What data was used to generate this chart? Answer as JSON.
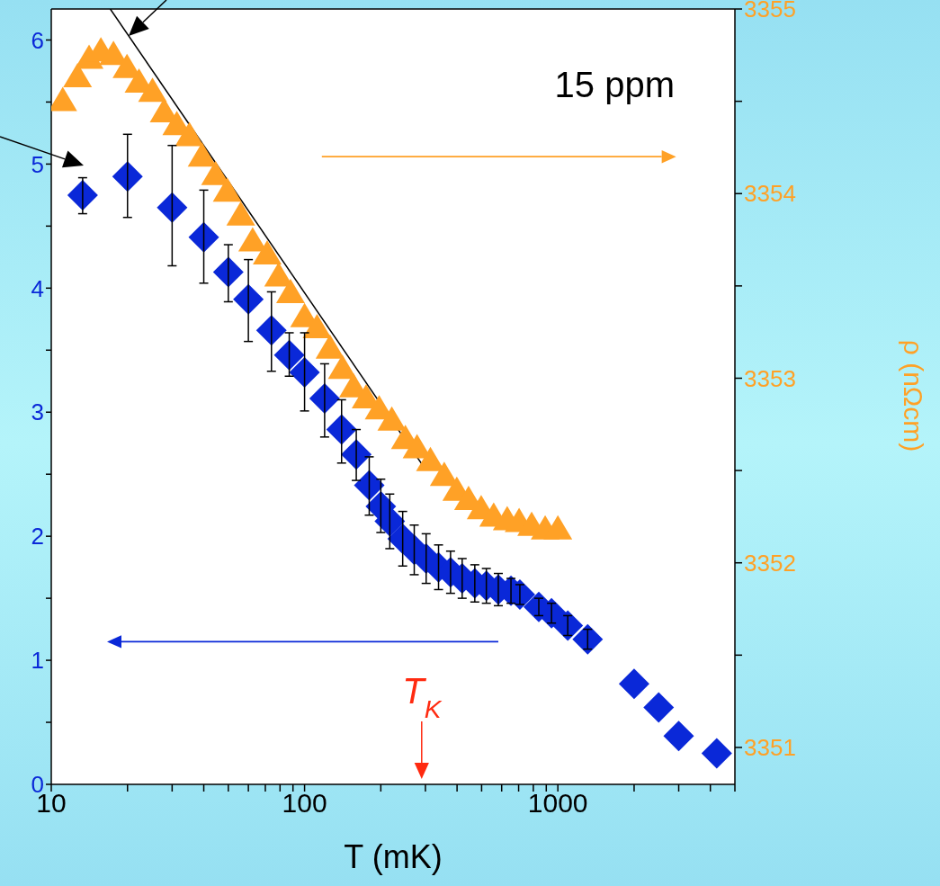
{
  "chart_data": {
    "type": "scatter",
    "xlabel": "T (mK)",
    "y2label": "ρ (nΩcm)",
    "annotations": [
      "15 ppm",
      "T$_{K}$"
    ],
    "log": "x",
    "xlim": [
      10,
      5000
    ],
    "xticks": [
      10,
      {
        "value": 20,
        "label": null
      },
      {
        "value": 30,
        "label": null
      },
      {
        "value": 40,
        "label": null
      },
      {
        "value": 50,
        "label": null
      },
      {
        "value": 60,
        "label": null
      },
      {
        "value": 70,
        "label": null
      },
      {
        "value": 80,
        "label": null
      },
      {
        "value": 90,
        "label": null
      },
      100,
      {
        "value": 200,
        "label": null
      },
      {
        "value": 300,
        "label": null
      },
      {
        "value": 400,
        "label": null
      },
      {
        "value": 500,
        "label": null
      },
      {
        "value": 600,
        "label": null
      },
      {
        "value": 700,
        "label": null
      },
      {
        "value": 800,
        "label": null
      },
      {
        "value": 900,
        "label": null
      },
      1000,
      {
        "value": 2000,
        "label": null
      },
      {
        "value": 3000,
        "label": null
      },
      {
        "value": 4000,
        "label": null
      },
      {
        "value": 5000,
        "label": null
      }
    ],
    "ylim": [
      0,
      6.25
    ],
    "yticks": [
      0,
      {
        "value": 0.5,
        "label": null
      },
      1,
      {
        "value": 1.5,
        "label": null
      },
      2,
      {
        "value": 2.5,
        "label": null
      },
      3,
      {
        "value": 3.5,
        "label": null
      },
      4,
      {
        "value": 4.5,
        "label": null
      },
      5,
      {
        "value": 5.5,
        "label": null
      },
      6
    ],
    "y2lim": [
      3350.8,
      3355
    ],
    "y2ticks": [
      3351,
      {
        "value": 3351.5,
        "label": null
      },
      3352,
      {
        "value": 3352.5,
        "label": null
      },
      3353,
      {
        "value": 3353.5,
        "label": null
      },
      3354,
      {
        "value": 3354.5,
        "label": null
      },
      3355
    ],
    "series": [
      {
        "type": "scatter",
        "color": "#0a28d8",
        "marker": "diamond",
        "x": [
          13.3,
          20,
          30,
          40,
          50,
          60,
          74,
          87,
          100,
          120,
          140,
          160,
          180,
          200,
          217,
          244,
          271,
          302,
          338,
          377,
          419,
          470,
          522,
          582,
          653,
          708,
          841,
          944,
          1094,
          1311,
          2000,
          2500,
          3000,
          4240
        ],
        "values": [
          4.75,
          4.9,
          4.65,
          4.41,
          4.13,
          3.91,
          3.66,
          3.46,
          3.32,
          3.11,
          2.86,
          2.66,
          2.41,
          2.24,
          2.12,
          1.98,
          1.89,
          1.82,
          1.75,
          1.71,
          1.66,
          1.62,
          1.6,
          1.57,
          1.56,
          1.53,
          1.43,
          1.38,
          1.28,
          1.17,
          0.81,
          0.62,
          0.39,
          0.25
        ],
        "errors": [
          [
            4.6,
            4.89
          ],
          [
            4.57,
            5.24
          ],
          [
            4.18,
            5.15
          ],
          [
            4.04,
            4.79
          ],
          [
            3.89,
            4.35
          ],
          [
            3.57,
            4.23
          ],
          [
            3.33,
            3.97
          ],
          [
            3.29,
            3.64
          ],
          [
            3.01,
            3.64
          ],
          [
            2.8,
            3.39
          ],
          [
            2.59,
            3.1
          ],
          [
            2.45,
            2.86
          ],
          [
            2.17,
            2.64
          ],
          [
            2.03,
            2.46
          ],
          0.22,
          0.22,
          0.2,
          0.2,
          0.18,
          0.17,
          0.16,
          0.15,
          0.14,
          0.13,
          0.1,
          0.08,
          0.07,
          0.08,
          0.08,
          0.08,
          null,
          null,
          null,
          null
        ]
      },
      {
        "type": "scatter",
        "axis": "y2",
        "color": "#ffa126",
        "marker": "triangle",
        "x": [
          11.1,
          12.7,
          14.1,
          15.7,
          17.6,
          19.9,
          22.2,
          25.1,
          27.9,
          31.3,
          35.1,
          39.4,
          44.5,
          49.5,
          56,
          62.4,
          71.2,
          79,
          88,
          100,
          112,
          126,
          141,
          156,
          175,
          197,
          221,
          250,
          278,
          314,
          356,
          399,
          444,
          498,
          558,
          631,
          703,
          788,
          891,
          1000
        ],
        "values": [
          3354.5,
          3354.63,
          3354.73,
          3354.77,
          3354.75,
          3354.68,
          3354.6,
          3354.55,
          3354.44,
          3354.37,
          3354.31,
          3354.2,
          3354.1,
          3354.01,
          3353.88,
          3353.74,
          3353.67,
          3353.55,
          3353.46,
          3353.33,
          3353.27,
          3353.16,
          3353.05,
          3352.95,
          3352.89,
          3352.83,
          3352.77,
          3352.67,
          3352.62,
          3352.55,
          3352.47,
          3352.39,
          3352.34,
          3352.29,
          3352.25,
          3352.23,
          3352.22,
          3352.2,
          3352.18,
          3352.18
        ]
      },
      {
        "type": "line",
        "axis": "y2",
        "color": "#000000",
        "marker": "none",
        "x": [
          17.1,
          292
        ],
        "values": [
          3355.0,
          3352.53
        ]
      }
    ]
  }
}
